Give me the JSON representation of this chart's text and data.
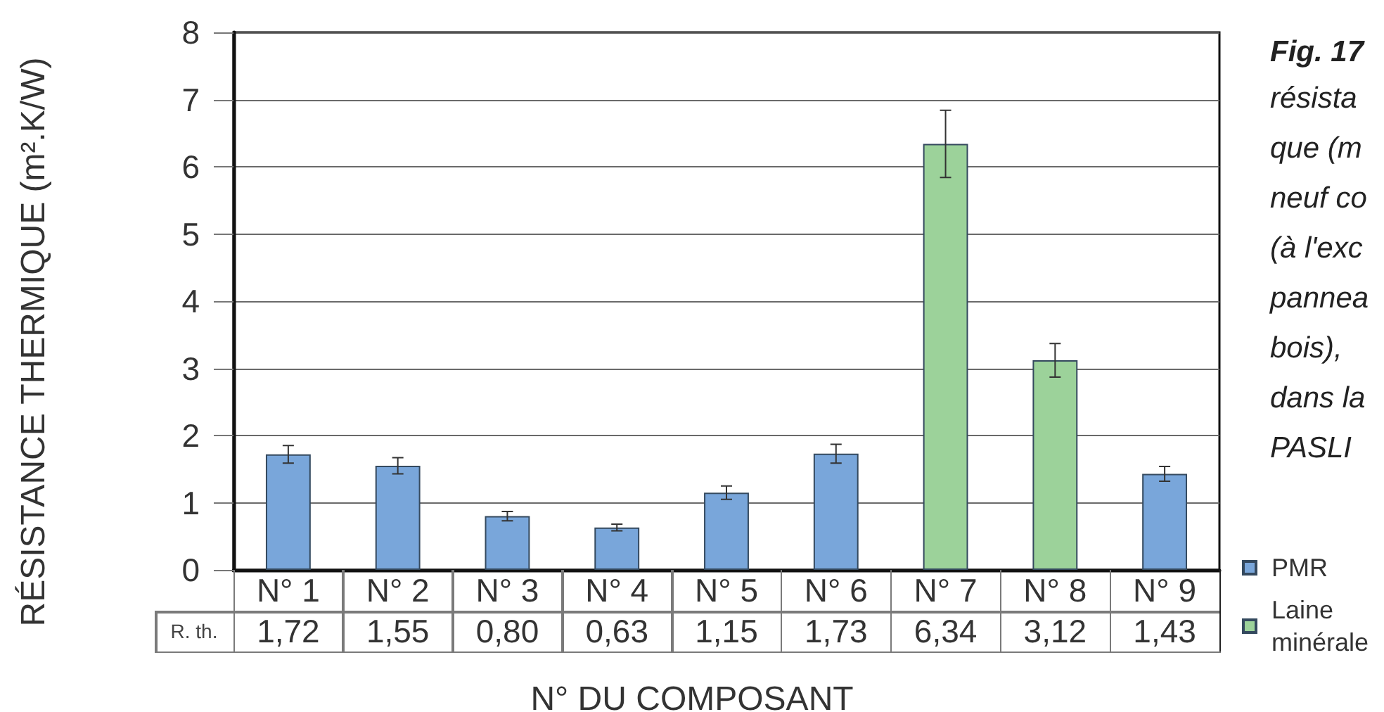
{
  "chart_data": {
    "type": "bar",
    "title": "Fig. 17",
    "subtitle": "résista\nque (m\nneuf co\n(à l'exc\npannea\nbois),\ndans la\nPASLI",
    "xlabel": "N° DU COMPOSANT",
    "ylabel": "RÉSISTANCE THERMIQUE (m².K/W)",
    "annotations": [
      "R. th."
    ],
    "categories": [
      "N° 1",
      "N° 2",
      "N° 3",
      "N° 4",
      "N° 5",
      "N° 6",
      "N° 7",
      "N° 8",
      "N° 9"
    ],
    "series": [
      {
        "name": "PMR",
        "color": "#79a6da",
        "values": [
          1.72,
          1.55,
          0.8,
          0.63,
          1.15,
          1.73,
          null,
          null,
          1.43
        ],
        "errors": [
          0.13,
          0.12,
          0.07,
          0.05,
          0.1,
          0.14,
          null,
          null,
          0.11
        ],
        "value_labels": [
          "1,72",
          "1,55",
          "0,80",
          "0,63",
          "1,15",
          "1,73",
          null,
          null,
          "1,43"
        ]
      },
      {
        "name": "Laine minérale",
        "color": "#9cd29a",
        "values": [
          null,
          null,
          null,
          null,
          null,
          null,
          6.34,
          3.12,
          null
        ],
        "errors": [
          null,
          null,
          null,
          null,
          null,
          null,
          0.5,
          0.25,
          null
        ],
        "value_labels": [
          null,
          null,
          null,
          null,
          null,
          null,
          "6,34",
          "3,12",
          null
        ]
      }
    ],
    "ylim": [
      0,
      8
    ],
    "yticks": [
      0,
      1,
      2,
      3,
      4,
      5,
      6,
      7,
      8
    ],
    "grid": "y",
    "legend": "bottom right"
  }
}
